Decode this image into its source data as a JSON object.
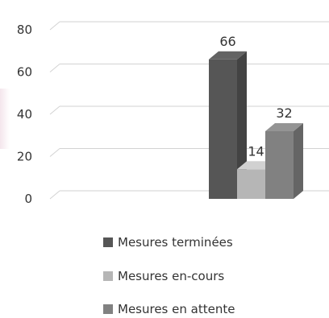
{
  "chart_data": {
    "type": "bar",
    "categories": [
      ""
    ],
    "series": [
      {
        "name": "Mesures terminées",
        "values": [
          66
        ],
        "color": "#565656"
      },
      {
        "name": "Mesures en-cours",
        "values": [
          14
        ],
        "color": "#b6b6b6"
      },
      {
        "name": "Mesures en attente",
        "values": [
          32
        ],
        "color": "#818181"
      }
    ],
    "data_labels": [
      "66",
      "14",
      "32"
    ],
    "yticks": [
      0,
      20,
      40,
      60,
      80
    ],
    "ytick_labels": [
      "0",
      "20",
      "40",
      "60",
      "80"
    ],
    "ylim": [
      0,
      80
    ],
    "grid": true,
    "legend_position": "bottom",
    "style": "3d-bar",
    "title": "",
    "xlabel": "",
    "ylabel": ""
  }
}
